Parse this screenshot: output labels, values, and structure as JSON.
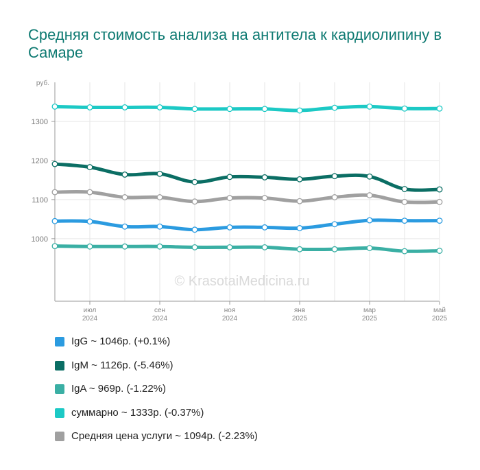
{
  "title": "Средняя стоимость анализа на антитела к кардиолипину в Самаре",
  "watermark": "© KrasotaiMedicina.ru",
  "chart_data": {
    "type": "line",
    "title": "Средняя стоимость анализа на антитела к кардиолипину в Самаре",
    "y_unit": "руб.",
    "ylim": [
      840,
      1400
    ],
    "y_ticks": [
      1000,
      1100,
      1200,
      1300
    ],
    "x": [
      "2024-06",
      "2024-07",
      "2024-08",
      "2024-09",
      "2024-10",
      "2024-11",
      "2024-12",
      "2025-01",
      "2025-02",
      "2025-03",
      "2025-04",
      "2025-05"
    ],
    "x_tick_labels": [
      {
        "month": "июл",
        "year": "2024",
        "index": 1
      },
      {
        "month": "сен",
        "year": "2024",
        "index": 3
      },
      {
        "month": "ноя",
        "year": "2024",
        "index": 5
      },
      {
        "month": "янв",
        "year": "2025",
        "index": 7
      },
      {
        "month": "мар",
        "year": "2025",
        "index": 9
      },
      {
        "month": "май",
        "year": "2025",
        "index": 11
      }
    ],
    "grid": true,
    "legend_position": "bottom",
    "series": [
      {
        "name": "IgG",
        "color": "#2b9be0",
        "values": [
          1045,
          1044,
          1031,
          1031,
          1023,
          1029,
          1029,
          1027,
          1037,
          1047,
          1046,
          1046
        ],
        "legend": "IgG ~ 1046р. (+0.1%)"
      },
      {
        "name": "IgM",
        "color": "#0b6e64",
        "values": [
          1191,
          1183,
          1164,
          1166,
          1145,
          1158,
          1157,
          1152,
          1160,
          1159,
          1127,
          1126
        ],
        "legend": "IgM ~ 1126р. (-5.46%)"
      },
      {
        "name": "IgA",
        "color": "#3aafa4",
        "values": [
          981,
          980,
          980,
          980,
          978,
          978,
          978,
          973,
          973,
          976,
          968,
          969
        ],
        "legend": "IgA ~ 969р. (-1.22%)"
      },
      {
        "name": "суммарно",
        "color": "#1cc9c5",
        "values": [
          1338,
          1336,
          1336,
          1336,
          1332,
          1332,
          1332,
          1328,
          1335,
          1338,
          1333,
          1333
        ],
        "legend": "суммарно ~ 1333р. (-0.37%)"
      },
      {
        "name": "Средняя цена услуги",
        "color": "#a0a0a0",
        "values": [
          1119,
          1119,
          1106,
          1106,
          1095,
          1104,
          1104,
          1096,
          1106,
          1111,
          1094,
          1094
        ],
        "legend": "Средняя цена услуги ~ 1094р. (-2.23%)"
      }
    ]
  }
}
